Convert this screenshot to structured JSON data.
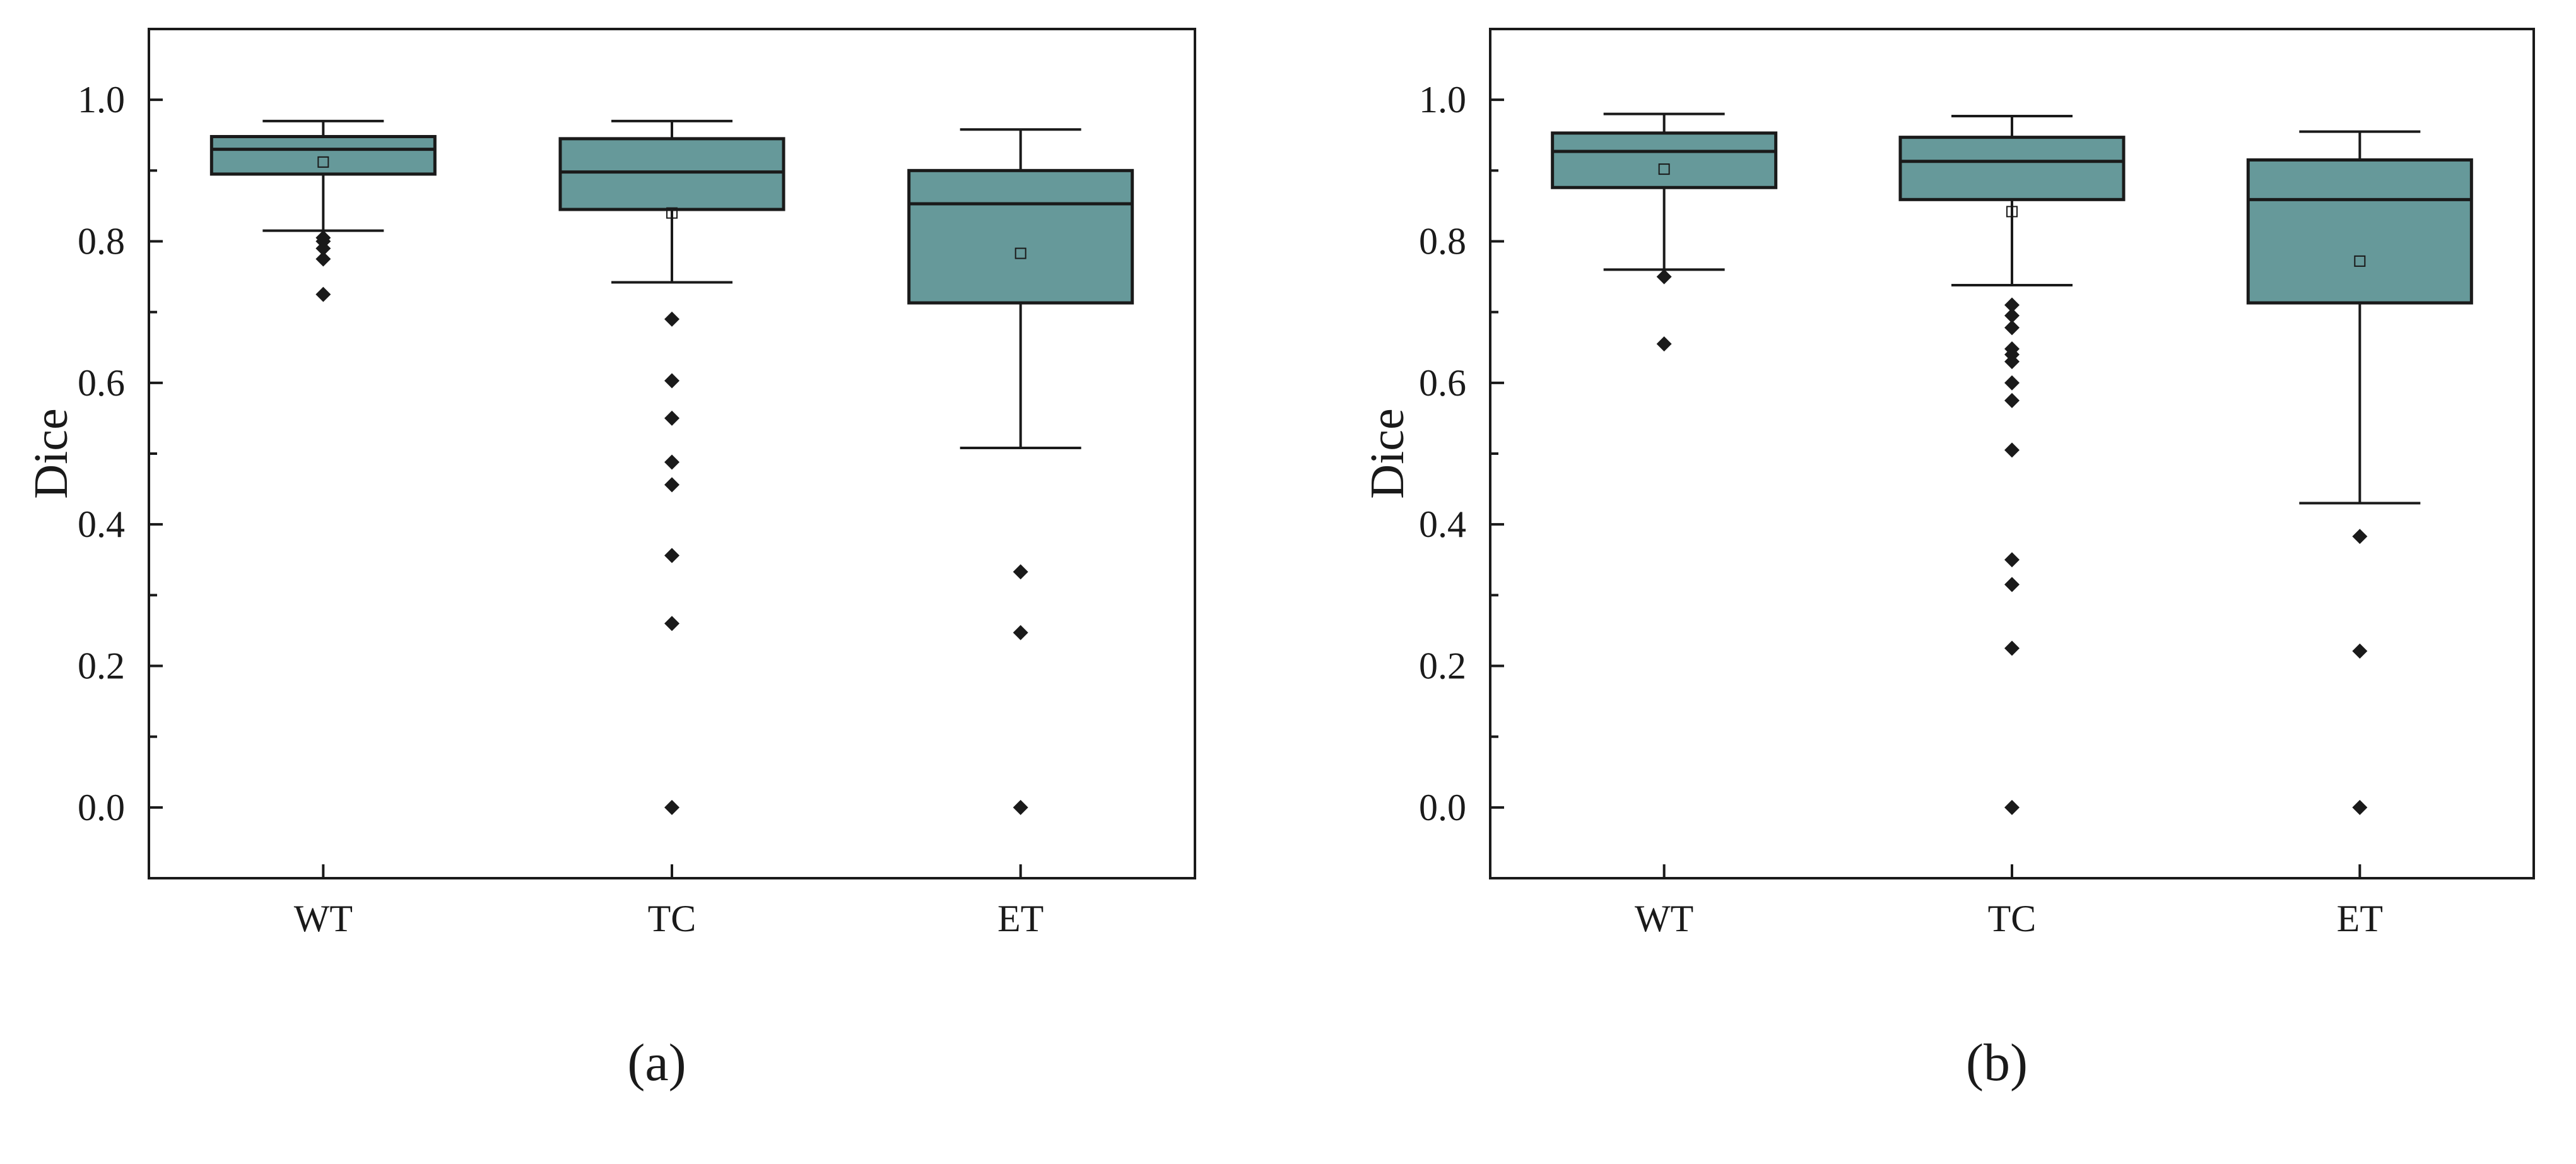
{
  "colors": {
    "box_fill": "#66999A",
    "line": "#1a1a1a",
    "background": "#ffffff"
  },
  "chart_data": [
    {
      "type": "box",
      "panel_label": "(a)",
      "ylabel": "Dice",
      "xlabel": "",
      "categories": [
        "WT",
        "TC",
        "ET"
      ],
      "ylim": [
        -0.1,
        1.1
      ],
      "yticks": [
        "0.0",
        "0.2",
        "0.4",
        "0.6",
        "0.8",
        "1.0"
      ],
      "grid": false,
      "boxes": [
        {
          "category": "WT",
          "whisker_low": 0.815,
          "q1": 0.895,
          "median": 0.93,
          "q3": 0.948,
          "whisker_high": 0.97,
          "mean": 0.912,
          "outliers": [
            0.805,
            0.8,
            0.79,
            0.775,
            0.725
          ]
        },
        {
          "category": "TC",
          "whisker_low": 0.742,
          "q1": 0.845,
          "median": 0.898,
          "q3": 0.945,
          "whisker_high": 0.97,
          "mean": 0.84,
          "outliers": [
            0.69,
            0.603,
            0.55,
            0.488,
            0.456,
            0.356,
            0.26,
            0.0
          ]
        },
        {
          "category": "ET",
          "whisker_low": 0.508,
          "q1": 0.713,
          "median": 0.853,
          "q3": 0.9,
          "whisker_high": 0.958,
          "mean": 0.783,
          "outliers": [
            0.333,
            0.247,
            0.0
          ]
        }
      ]
    },
    {
      "type": "box",
      "panel_label": "(b)",
      "ylabel": "Dice",
      "xlabel": "",
      "categories": [
        "WT",
        "TC",
        "ET"
      ],
      "ylim": [
        -0.1,
        1.1
      ],
      "yticks": [
        "0.0",
        "0.2",
        "0.4",
        "0.6",
        "0.8",
        "1.0"
      ],
      "grid": false,
      "boxes": [
        {
          "category": "WT",
          "whisker_low": 0.76,
          "q1": 0.876,
          "median": 0.927,
          "q3": 0.953,
          "whisker_high": 0.98,
          "mean": 0.902,
          "outliers": [
            0.75,
            0.655
          ]
        },
        {
          "category": "TC",
          "whisker_low": 0.738,
          "q1": 0.859,
          "median": 0.913,
          "q3": 0.947,
          "whisker_high": 0.977,
          "mean": 0.842,
          "outliers": [
            0.71,
            0.695,
            0.678,
            0.648,
            0.64,
            0.63,
            0.6,
            0.575,
            0.505,
            0.35,
            0.315,
            0.225,
            0.0
          ]
        },
        {
          "category": "ET",
          "whisker_low": 0.43,
          "q1": 0.713,
          "median": 0.859,
          "q3": 0.915,
          "whisker_high": 0.955,
          "mean": 0.772,
          "outliers": [
            0.383,
            0.221,
            0.0
          ]
        }
      ]
    }
  ]
}
